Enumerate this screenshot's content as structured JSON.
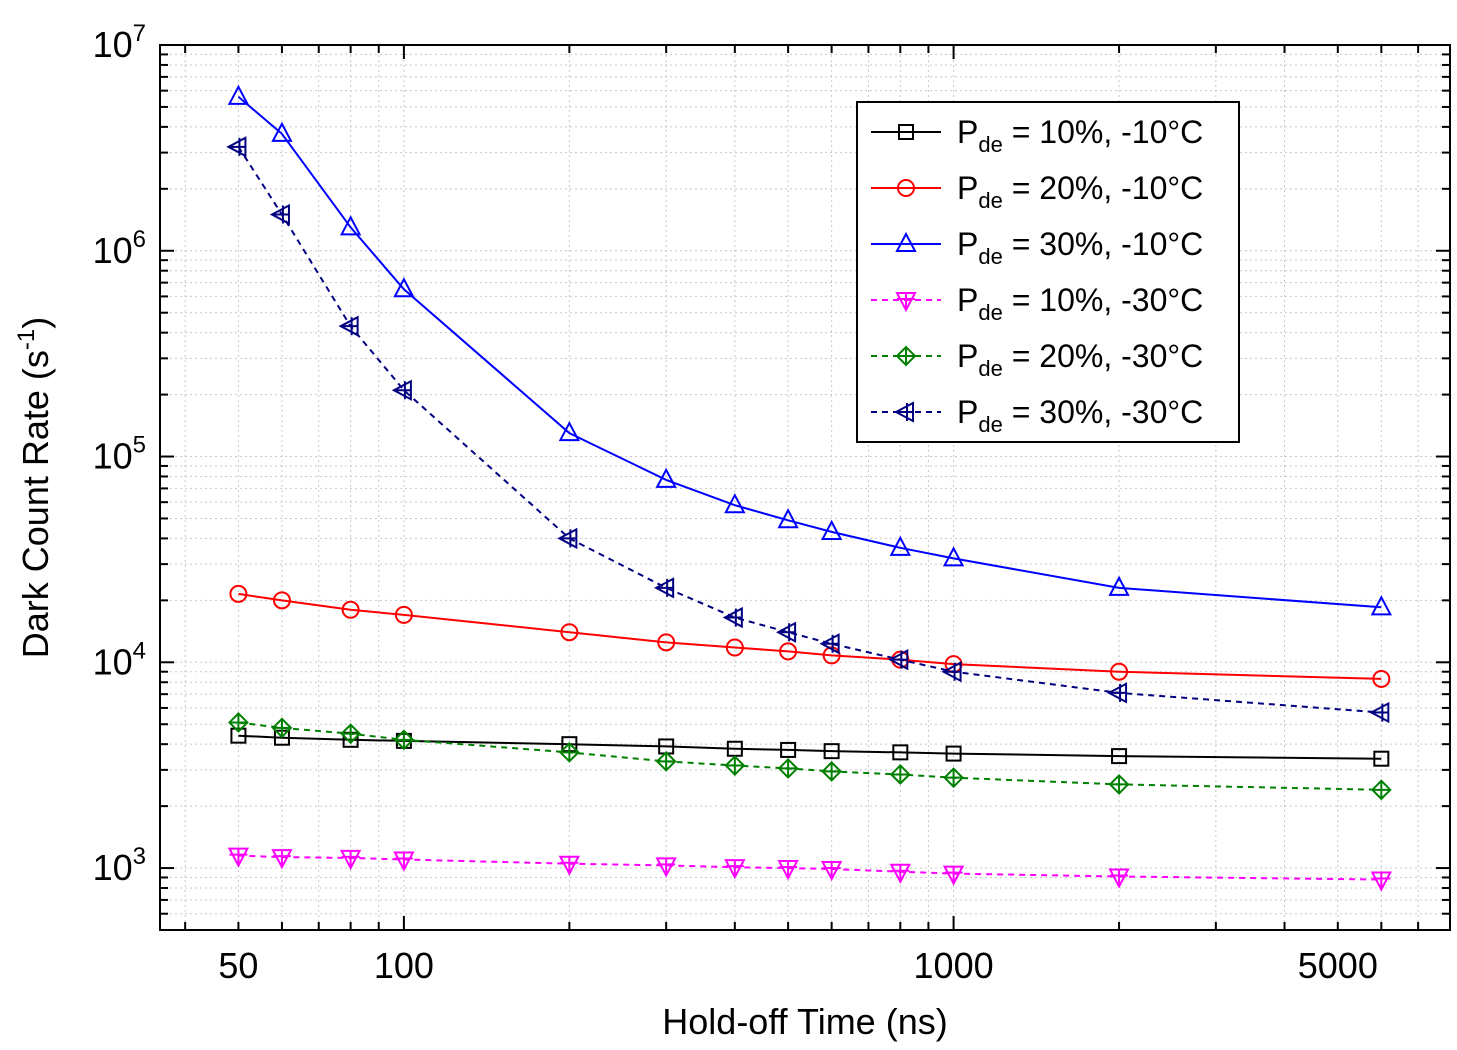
{
  "chart_data": {
    "type": "line",
    "xlabel": "Hold-off Time (ns)",
    "ylabel": "Dark Count Rate (s",
    "ylabel_sup": "-1",
    "ylabel_close": ")",
    "xscale": "log",
    "yscale": "log",
    "xlim": [
      36,
      8000
    ],
    "ylim": [
      500,
      10000000
    ],
    "grid": true,
    "legend_position": "top-right",
    "x_ticks": [
      {
        "value": 50,
        "label": "50"
      },
      {
        "value": 100,
        "label": "100"
      },
      {
        "value": 1000,
        "label": "1000"
      },
      {
        "value": 5000,
        "label": "5000"
      }
    ],
    "y_ticks": [
      {
        "value": 1000,
        "base": "10",
        "exp": "3"
      },
      {
        "value": 10000,
        "base": "10",
        "exp": "4"
      },
      {
        "value": 100000,
        "base": "10",
        "exp": "5"
      },
      {
        "value": 1000000,
        "base": "10",
        "exp": "6"
      },
      {
        "value": 10000000,
        "base": "10",
        "exp": "7"
      }
    ],
    "x": [
      50,
      60,
      80,
      100,
      200,
      300,
      400,
      500,
      600,
      800,
      1000,
      2000,
      6000
    ],
    "series": [
      {
        "name_main": "P",
        "name_sub": "de",
        "name_rest": " = 10%, -10°C",
        "color": "#000000",
        "dash": "solid",
        "marker": "square",
        "values": [
          4400,
          4300,
          4200,
          4150,
          4000,
          3900,
          3800,
          3750,
          3700,
          3650,
          3600,
          3500,
          3400
        ]
      },
      {
        "name_main": "P",
        "name_sub": "de",
        "name_rest": " = 20%, -10°C",
        "color": "#ff0000",
        "dash": "solid",
        "marker": "circle",
        "values": [
          21500,
          20000,
          18000,
          17000,
          14000,
          12500,
          11800,
          11300,
          10800,
          10300,
          9800,
          9000,
          8300
        ]
      },
      {
        "name_main": "P",
        "name_sub": "de",
        "name_rest": " = 30%, -10°C",
        "color": "#0000ff",
        "dash": "solid",
        "marker": "triangle-up",
        "values": [
          5600000,
          3700000,
          1300000,
          650000,
          130000,
          77000,
          58000,
          49000,
          43000,
          36000,
          32000,
          23000,
          18500
        ]
      },
      {
        "name_main": "P",
        "name_sub": "de",
        "name_rest": " = 10%, -30°C",
        "color": "#ff00ff",
        "dash": "dashed",
        "marker": "triangle-down",
        "values": [
          1150,
          1130,
          1120,
          1100,
          1050,
          1030,
          1010,
          1000,
          990,
          960,
          940,
          910,
          880
        ]
      },
      {
        "name_main": "P",
        "name_sub": "de",
        "name_rest": " = 20%, -30°C",
        "color": "#008000",
        "dash": "dashed",
        "marker": "diamond",
        "values": [
          5100,
          4800,
          4500,
          4200,
          3650,
          3300,
          3150,
          3050,
          2950,
          2850,
          2750,
          2550,
          2400
        ]
      },
      {
        "name_main": "P",
        "name_sub": "de",
        "name_rest": " = 30%, -30°C",
        "color": "#000080",
        "dash": "dashed",
        "marker": "triangle-left",
        "values": [
          3200000,
          1500000,
          430000,
          210000,
          40000,
          23000,
          16500,
          14000,
          12300,
          10300,
          9000,
          7100,
          5700
        ]
      }
    ]
  }
}
